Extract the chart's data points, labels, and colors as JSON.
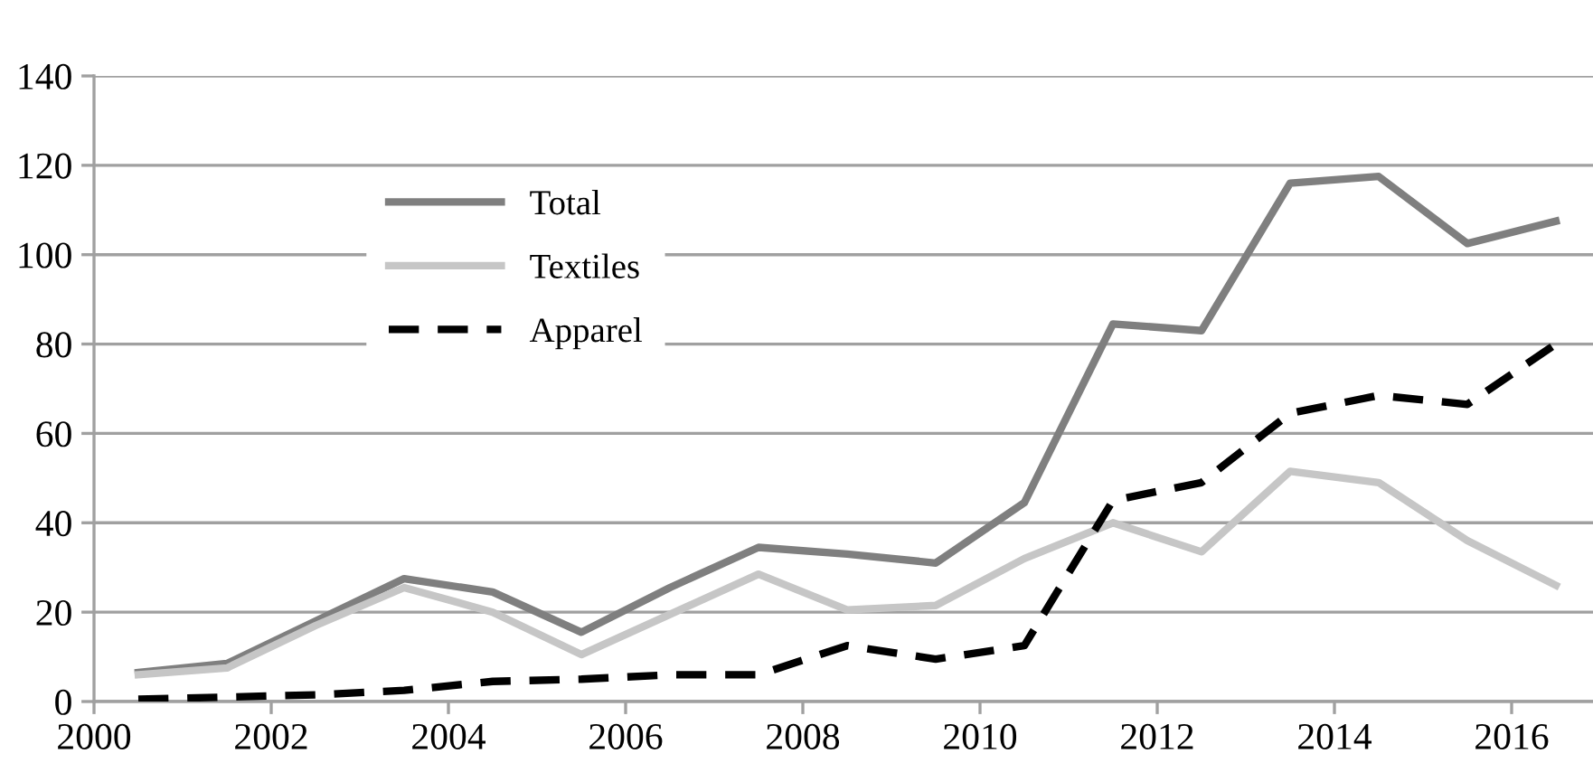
{
  "chart_data": {
    "type": "line",
    "x": [
      2000.5,
      2001.5,
      2002.5,
      2003.5,
      2004.5,
      2005.5,
      2006.5,
      2007.5,
      2008.5,
      2009.5,
      2010.5,
      2011.5,
      2012.5,
      2013.5,
      2014.5,
      2015.5,
      2016.5
    ],
    "series": [
      {
        "name": "Total",
        "color": "#7f7f7f",
        "line_style": "solid",
        "values": [
          6.5,
          8.5,
          18,
          27.5,
          24.5,
          15.5,
          25.5,
          34.5,
          33,
          31,
          44.5,
          84.5,
          83,
          116,
          117.5,
          102.5,
          107.5
        ]
      },
      {
        "name": "Textiles",
        "color": "#c6c6c6",
        "line_style": "solid",
        "values": [
          6,
          7.5,
          17,
          25.5,
          20,
          10.5,
          19.5,
          28.5,
          20.5,
          21.5,
          32,
          40,
          33.5,
          51.5,
          49,
          36,
          26
        ]
      },
      {
        "name": "Apparel",
        "color": "#000000",
        "line_style": "dashed",
        "values": [
          0.5,
          1,
          1.5,
          2.5,
          4.5,
          5,
          6,
          6,
          12.5,
          9.5,
          12.5,
          45,
          49,
          64.5,
          68.5,
          66.5,
          80
        ]
      }
    ],
    "xlim": [
      2000,
      2017
    ],
    "xticks": [
      2000,
      2002,
      2004,
      2006,
      2008,
      2010,
      2012,
      2014,
      2016
    ],
    "ylim": [
      0,
      140
    ],
    "yticks": [
      0,
      20,
      40,
      60,
      80,
      100,
      120,
      140
    ],
    "grid": "y",
    "legend": "top left"
  }
}
